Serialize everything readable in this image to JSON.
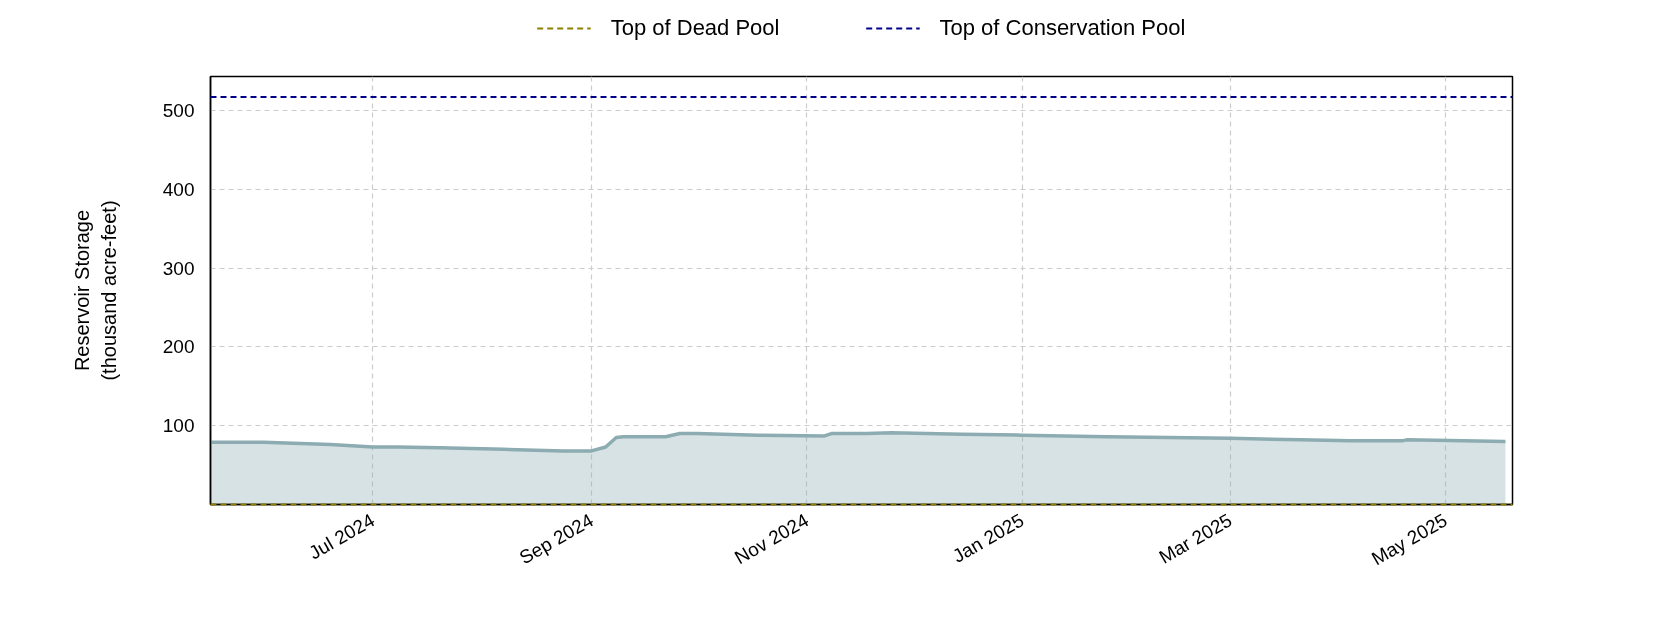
{
  "chart_data": {
    "type": "area",
    "ylabel": "Reservoir Storage\n(thousand acre-feet)",
    "x": [
      "2024-05-16",
      "2024-05-31",
      "2024-06-19",
      "2024-07-01",
      "2024-07-08",
      "2024-07-20",
      "2024-08-07",
      "2024-08-24",
      "2024-09-01",
      "2024-09-05",
      "2024-09-08",
      "2024-09-10",
      "2024-09-22",
      "2024-09-26",
      "2024-10-01",
      "2024-10-18",
      "2024-11-06",
      "2024-11-08",
      "2024-11-18",
      "2024-11-25",
      "2024-12-15",
      "2025-01-01",
      "2025-01-25",
      "2025-03-01",
      "2025-03-21",
      "2025-04-04",
      "2025-04-19",
      "2025-04-20",
      "2025-05-18"
    ],
    "series": [
      {
        "color": "#8cacb1",
        "values": [
          79,
          79,
          76,
          73,
          73,
          72,
          70,
          68,
          68,
          73,
          85,
          86,
          86,
          90,
          90,
          88,
          87,
          90,
          90,
          91,
          89,
          88,
          86,
          84,
          82,
          81,
          81,
          82,
          80
        ]
      }
    ],
    "ref_lines": [
      {
        "axis": "y",
        "value": 0,
        "label": "Top of Dead Pool",
        "color": "#8b8000",
        "line_style": "dashed"
      },
      {
        "axis": "y",
        "value": 517,
        "label": "Top of Conservation Pool",
        "color": "#00008b",
        "line_style": "dashed"
      }
    ],
    "xlim": [
      "2024-05-16",
      "2025-05-20"
    ],
    "xticks": [
      {
        "value": "2024-07-01",
        "label": "Jul 2024"
      },
      {
        "value": "2024-09-01",
        "label": "Sep 2024"
      },
      {
        "value": "2024-11-01",
        "label": "Nov 2024"
      },
      {
        "value": "2025-01-01",
        "label": "Jan 2025"
      },
      {
        "value": "2025-03-01",
        "label": "Mar 2025"
      },
      {
        "value": "2025-05-01",
        "label": "May 2025"
      }
    ],
    "ylim": [
      0,
      543
    ],
    "yticks": [
      100,
      200,
      300,
      400,
      500
    ],
    "grid": true,
    "legend": "top"
  }
}
